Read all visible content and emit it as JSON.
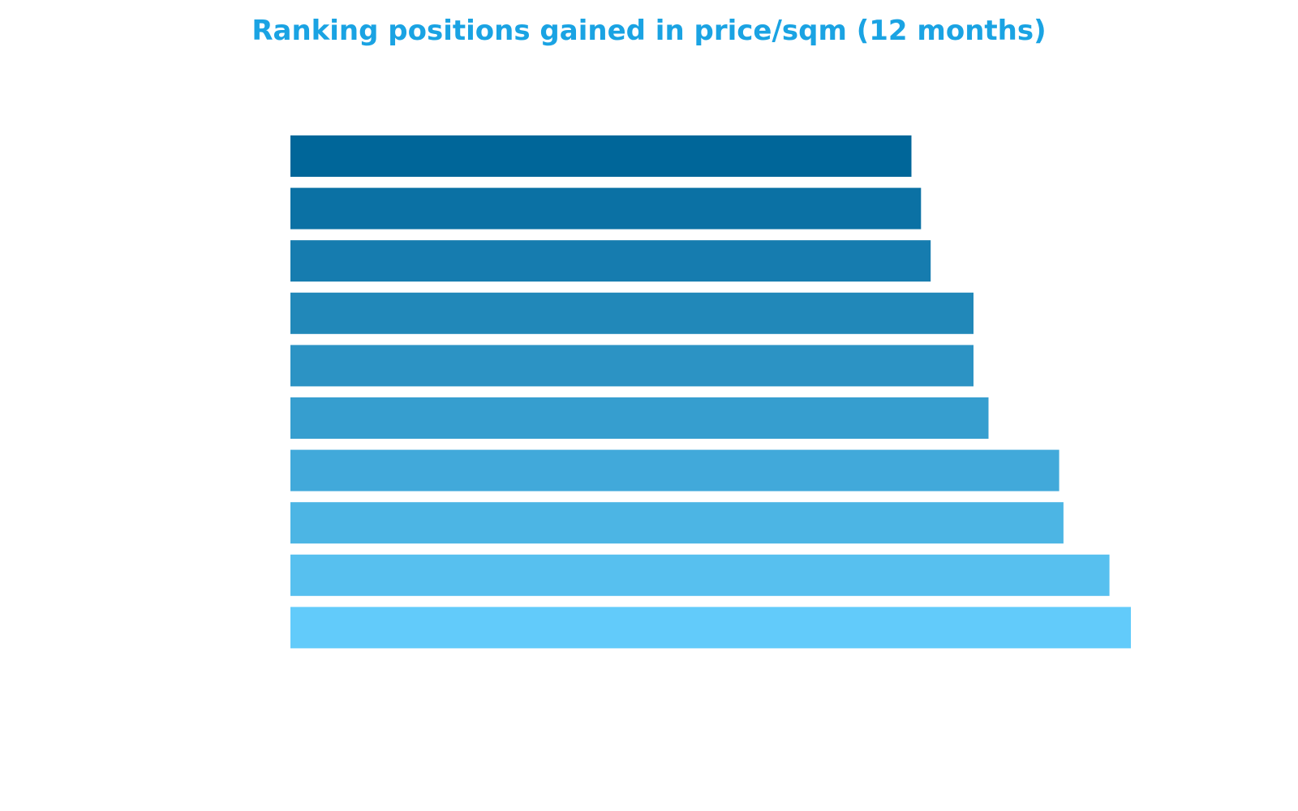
{
  "colors": {
    "title": "#1aa3e3",
    "bar_gradient_start": "#006699",
    "bar_gradient_end": "#62cbfa",
    "background": "#ffffff"
  },
  "chart_data": {
    "type": "bar",
    "orientation": "horizontal",
    "title": "Ranking positions gained in price/sqm (12 months)",
    "xlabel": "",
    "ylabel": "",
    "categories": [
      "",
      "",
      "",
      "",
      "",
      "",
      "",
      "",
      "",
      ""
    ],
    "values": [
      29,
      29.45,
      29.9,
      31.9,
      31.9,
      32.6,
      35.9,
      36.1,
      38.25,
      39.25
    ],
    "xlim": [
      0,
      39.25
    ],
    "grid": false,
    "legend": "none"
  }
}
